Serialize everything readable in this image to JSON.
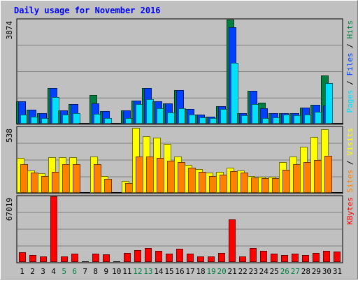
{
  "chart_data": {
    "type": "bar",
    "title": "Daily usage for November 2016",
    "categories": [
      "1",
      "2",
      "3",
      "4",
      "5",
      "6",
      "7",
      "8",
      "9",
      "10",
      "11",
      "12",
      "13",
      "14",
      "15",
      "16",
      "17",
      "18",
      "19",
      "20",
      "21",
      "22",
      "23",
      "24",
      "25",
      "26",
      "27",
      "28",
      "29",
      "30",
      "31"
    ],
    "weekend_days": [
      "5",
      "6",
      "12",
      "13",
      "19",
      "20",
      "26",
      "27"
    ],
    "panels": [
      {
        "id": "hits-files-pages",
        "ytick": "3874",
        "ylim": [
          0,
          3874
        ],
        "label_parts": [
          "Pages",
          "Files",
          "Hits"
        ],
        "series": [
          {
            "name": "Hits",
            "color": "#008040",
            "values": [
              820,
              510,
              380,
              1330,
              490,
              740,
              0,
              1070,
              460,
              0,
              500,
              850,
              1330,
              820,
              750,
              1260,
              540,
              350,
              250,
              650,
              3874,
              400,
              1230,
              790,
              380,
              400,
              380,
              600,
              690,
              1800,
              0
            ]
          },
          {
            "name": "Files",
            "color": "#0040ff",
            "values": [
              820,
              510,
              380,
              1330,
              490,
              740,
              0,
              750,
              460,
              0,
              500,
              850,
              1330,
              820,
              750,
              1260,
              540,
              350,
              250,
              650,
              3600,
              400,
              1230,
              560,
              380,
              400,
              380,
              600,
              690,
              680,
              0
            ]
          },
          {
            "name": "Pages",
            "color": "#00e0ff",
            "values": [
              330,
              270,
              200,
              1000,
              330,
              400,
              0,
              370,
              200,
              0,
              200,
              740,
              900,
              580,
              420,
              560,
              330,
              240,
              200,
              540,
              2250,
              300,
              720,
              200,
              240,
              350,
              320,
              330,
              440,
              1520,
              0
            ]
          }
        ]
      },
      {
        "id": "visits-sites",
        "ytick": "538",
        "ylim": [
          0,
          538
        ],
        "label_parts": [
          "Sites",
          "Visits"
        ],
        "series": [
          {
            "name": "Visits",
            "color": "#ffff00",
            "values": [
              285,
              185,
              160,
              290,
              290,
              290,
              0,
              300,
              135,
              0,
              95,
              530,
              465,
              450,
              400,
              300,
              230,
              195,
              165,
              170,
              205,
              185,
              135,
              130,
              130,
              250,
              295,
              375,
              460,
              520,
              0
            ]
          },
          {
            "name": "Sites",
            "color": "#ff8000",
            "values": [
              235,
              165,
              140,
              170,
              235,
              235,
              0,
              235,
              115,
              0,
              80,
              300,
              300,
              285,
              265,
              250,
              205,
              170,
              140,
              150,
              175,
              165,
              125,
              120,
              120,
              190,
              235,
              250,
              270,
              305,
              0
            ]
          }
        ]
      },
      {
        "id": "kbytes",
        "ytick": "67019",
        "ylim": [
          0,
          67019
        ],
        "label_parts": [
          "KBytes"
        ],
        "series": [
          {
            "name": "KBytes",
            "color": "#ff0000",
            "values": [
              10000,
              6800,
              6000,
              67019,
              5800,
              8200,
              0,
              8800,
              7800,
              0,
              9400,
              11800,
              14400,
              11200,
              8800,
              13400,
              8200,
              5400,
              5400,
              9400,
              43500,
              5800,
              14000,
              11600,
              8400,
              7200,
              8400,
              7400,
              9400,
              11400,
              10600
            ]
          }
        ]
      }
    ]
  }
}
